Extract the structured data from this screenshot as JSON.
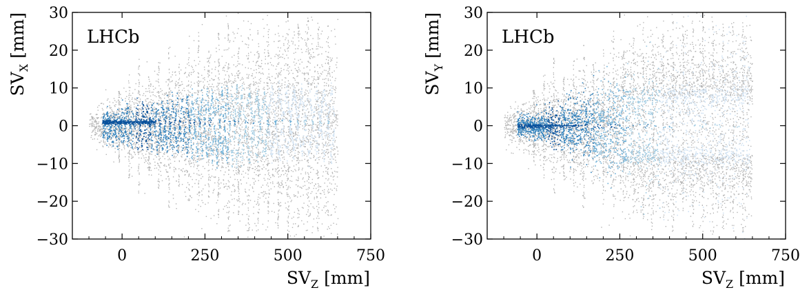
{
  "chart_data": [
    {
      "type": "heatmap",
      "annotation": "LHCb",
      "xlabel": "SV",
      "xlabel_sub": "Z",
      "xlabel_unit": " [mm]",
      "ylabel": "SV",
      "ylabel_sub": "X",
      "ylabel_unit": " [mm]",
      "xlim": [
        -150,
        750
      ],
      "ylim": [
        -30,
        30
      ],
      "xticks": [
        0,
        250,
        500,
        750
      ],
      "xtick_labels": [
        "0",
        "250",
        "500",
        "750"
      ],
      "yticks": [
        -30,
        -20,
        -10,
        0,
        10,
        20,
        30
      ],
      "ytick_labels": [
        "−30",
        "−20",
        "−10",
        "0",
        "10",
        "20",
        "30"
      ],
      "colors": {
        "background_points": "#b4b4b4",
        "low": "#cfe1f2",
        "high": "#08519c"
      },
      "grid": false,
      "description_values": {
        "vertex_z_range": [
          -100,
          650
        ],
        "core_band_z_range": [
          -20,
          100
        ],
        "core_band_x": 1,
        "sensor_station_z": [
          -10,
          20,
          50,
          80,
          110,
          140,
          170,
          200,
          230,
          260,
          290,
          320,
          350,
          380,
          410,
          440,
          470,
          500,
          530,
          560,
          590,
          620
        ],
        "pattern": "zigzag"
      }
    },
    {
      "type": "heatmap",
      "annotation": "LHCb",
      "xlabel": "SV",
      "xlabel_sub": "Z",
      "xlabel_unit": " [mm]",
      "ylabel": "SV",
      "ylabel_sub": "Y",
      "ylabel_unit": " [mm]",
      "xlim": [
        -150,
        750
      ],
      "ylim": [
        -30,
        30
      ],
      "xticks": [
        0,
        250,
        500,
        750
      ],
      "xtick_labels": [
        "0",
        "250",
        "500",
        "750"
      ],
      "yticks": [
        -30,
        -20,
        -10,
        0,
        10,
        20,
        30
      ],
      "ytick_labels": [
        "−30",
        "−20",
        "−10",
        "0",
        "10",
        "20",
        "30"
      ],
      "colors": {
        "background_points": "#b4b4b4",
        "low": "#cfe1f2",
        "high": "#08519c"
      },
      "grid": false,
      "description_values": {
        "vertex_z_range": [
          -100,
          650
        ],
        "core_band_z_range": [
          -30,
          120
        ],
        "core_band_y": 0,
        "sensor_station_z": [
          -10,
          20,
          50,
          80,
          110,
          140,
          170,
          200,
          230,
          260,
          290,
          320,
          350,
          380,
          410,
          440,
          470,
          500,
          530,
          560,
          590,
          620
        ],
        "pattern": "fan"
      }
    }
  ]
}
